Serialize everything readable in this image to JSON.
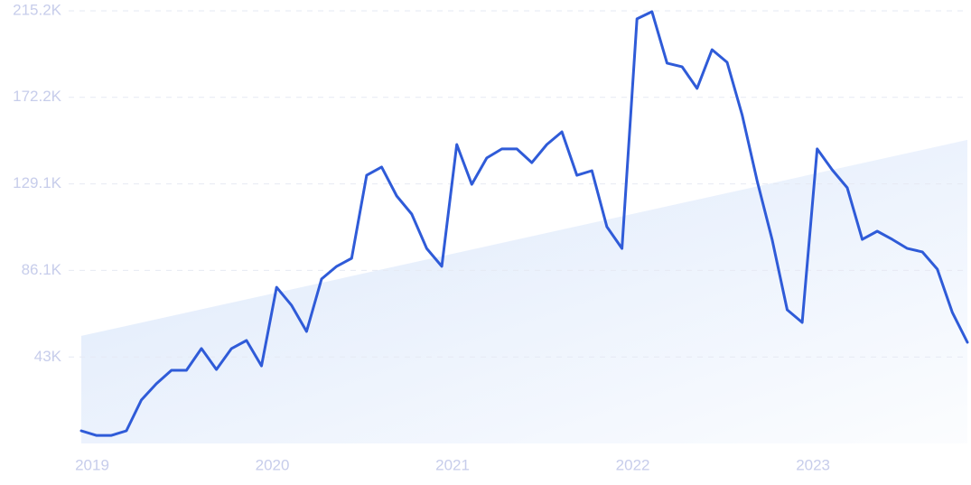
{
  "chart_data": {
    "type": "line",
    "categories": [
      "2019",
      null,
      null,
      null,
      null,
      null,
      null,
      null,
      null,
      null,
      null,
      null,
      "2020",
      null,
      null,
      null,
      null,
      null,
      null,
      null,
      null,
      null,
      null,
      null,
      "2021",
      null,
      null,
      null,
      null,
      null,
      null,
      null,
      null,
      null,
      null,
      null,
      "2022",
      null,
      null,
      null,
      null,
      null,
      null,
      null,
      null,
      null,
      null,
      null,
      "2023",
      null,
      null,
      null,
      null,
      null,
      null,
      null,
      null,
      null,
      null,
      null
    ],
    "values": [
      6300,
      4000,
      4000,
      6300,
      21600,
      29700,
      36400,
      36400,
      47200,
      36800,
      47200,
      51200,
      38600,
      77700,
      68700,
      55700,
      81800,
      88100,
      92100,
      133400,
      137500,
      123100,
      114100,
      97000,
      88100,
      148700,
      128900,
      142000,
      146500,
      146500,
      139700,
      148700,
      155000,
      133400,
      135700,
      107800,
      97000,
      211200,
      214800,
      189200,
      187400,
      176600,
      195900,
      189600,
      163500,
      130700,
      101500,
      66500,
      60200,
      146500,
      136100,
      127200,
      101500,
      105600,
      101500,
      97000,
      95300,
      86700,
      65100,
      50300
    ],
    "color": "#2f5bd8",
    "trend": [
      53500,
      151000
    ],
    "trend_color": "#dce8fb",
    "ylim": [
      0,
      215200
    ],
    "yticks": [
      {
        "value": 43000,
        "label": "43K"
      },
      {
        "value": 86100,
        "label": "86.1K"
      },
      {
        "value": 129100,
        "label": "129.1K"
      },
      {
        "value": 172200,
        "label": "172.2K"
      },
      {
        "value": 215200,
        "label": "215.2K"
      }
    ],
    "grid": true
  }
}
